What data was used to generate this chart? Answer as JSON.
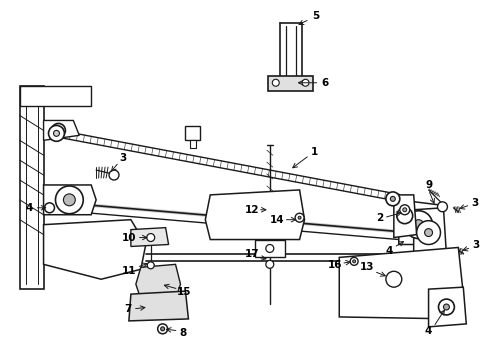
{
  "background_color": "#ffffff",
  "line_color": "#1a1a1a",
  "label_color": "#000000",
  "fig_width": 4.89,
  "fig_height": 3.6,
  "dpi": 100,
  "label_fontsize": 7.5
}
